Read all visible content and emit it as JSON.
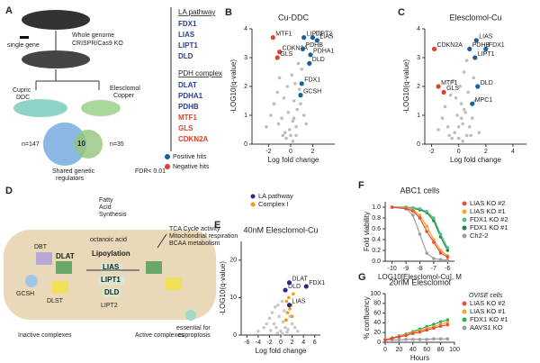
{
  "diagram_a": {
    "letter": "A",
    "single_gene": "single gene",
    "ko1": "Whole genome",
    "ko2": "CRISPR/Cas9 KO",
    "cupric1": "Cupric",
    "cupric2": "DDC",
    "eles1": "Elesclomol",
    "eles2": "Copper",
    "n1": "n=147",
    "overlap": "10",
    "n2": "n=35",
    "shared1": "Shared genetic",
    "shared2": "regulators",
    "fdr": "FDR< 0.01",
    "la_header": "LA pathway",
    "la_genes": [
      "FDX1",
      "LIAS",
      "LIPT1",
      "DLD"
    ],
    "pdh_header": "PDH complex",
    "pdh_genes": [
      "DLAT",
      "PDHA1",
      "PDHB"
    ],
    "neg_genes": [
      "MTF1",
      "GLS",
      "CDKN2A"
    ],
    "legend": [
      "Positive hits",
      "Negative hits"
    ]
  },
  "diagram_d": {
    "letter": "D",
    "dbt": "DBT",
    "dlat": "DLAT",
    "gcsh": "GCSH",
    "dlst": "DLST",
    "fas1": "Fatty",
    "fas2": "Acid",
    "fas3": "Synthesis",
    "octanoic": "octanoic acid",
    "lipoylation": "Lipoylation",
    "lias": "LIAS",
    "lipt1": "LIPT1",
    "dld": "DLD",
    "lipt2": "LIPT2",
    "out1": "TCA Cycle activity",
    "out2": "Mitochondrial respiration",
    "out3": "BCAA metabolism",
    "inactive": "Inactive complexes",
    "active": "Active complexes",
    "ess1": "essential for",
    "ess2": "cuproptosis"
  },
  "chart_data": [
    {
      "type": "scatter",
      "panel": "B",
      "title": "Cu-DDC",
      "x_label": "Log fold change",
      "y_label": "-LOG10(q-value)",
      "xlim": [
        -3.5,
        4
      ],
      "ylim": [
        0,
        4
      ],
      "xticks": [
        -2,
        0,
        2
      ],
      "yticks": [
        0,
        1,
        2,
        3,
        4
      ],
      "series": [
        {
          "color": "#bdbdbd",
          "x": [
            -2.2,
            -1.8,
            -1.5,
            -1.2,
            -1.0,
            -0.8,
            -0.6,
            -0.5,
            -0.3,
            -0.2,
            0,
            0.1,
            0.2,
            0.3,
            0.4,
            0.5,
            0.6,
            0.8,
            1.0,
            1.2,
            1.4,
            -0.4,
            -0.1,
            0.2,
            0.5,
            0.7,
            -0.7,
            -1.1,
            0.9,
            0.3
          ],
          "values": [
            0.6,
            1.0,
            1.4,
            1.8,
            2.3,
            0.9,
            1.6,
            0.4,
            2.0,
            1.1,
            0.3,
            2.4,
            0.8,
            1.5,
            2.1,
            0.6,
            1.2,
            1.9,
            2.6,
            1.0,
            0.7,
            0.2,
            0.5,
            0.1,
            0.3,
            2.8,
            0.3,
            0.7,
            1.4,
            0.9
          ]
        },
        {
          "color": "#e0402c",
          "x": [
            -1.6,
            -1.0,
            -1.2
          ],
          "values": [
            3.7,
            3.2,
            3.0
          ],
          "labels": [
            "MTF1",
            "CDKN2A",
            "GLS"
          ]
        },
        {
          "color": "#1a5f9a",
          "x": [
            1.2,
            2.0,
            2.4,
            1.1,
            1.8,
            1.7,
            1.0,
            0.9
          ],
          "values": [
            3.7,
            3.7,
            3.6,
            3.3,
            3.1,
            2.8,
            2.1,
            1.7
          ],
          "labels": [
            "LIPT1",
            "LIPT2",
            "LIAS",
            "PDHB",
            "PDHA1",
            "DLD",
            "FDX1",
            "GCSH"
          ]
        }
      ]
    },
    {
      "type": "scatter",
      "panel": "C",
      "title": "Elesclomol-Cu",
      "x_label": "Log fold change",
      "y_label": "-LOG10(q-value)",
      "xlim": [
        -2.5,
        5
      ],
      "ylim": [
        0,
        4
      ],
      "xticks": [
        -2,
        0,
        2,
        4
      ],
      "yticks": [
        0,
        1,
        2,
        3,
        4
      ],
      "series": [
        {
          "color": "#bdbdbd",
          "x": [
            -1.5,
            -1.2,
            -1.0,
            -0.8,
            -0.6,
            -0.4,
            -0.3,
            -0.1,
            0,
            0.1,
            0.2,
            0.3,
            0.4,
            0.5,
            0.6,
            0.7,
            0.8,
            1.0,
            1.2,
            1.5,
            -0.5,
            0.0,
            0.3,
            0.6,
            -0.2,
            0.9,
            1.1,
            -0.7,
            0.2,
            0.4
          ],
          "values": [
            0.5,
            0.9,
            1.3,
            0.6,
            1.7,
            2.2,
            0.4,
            1.0,
            0.2,
            2.0,
            1.4,
            0.7,
            2.5,
            1.1,
            0.3,
            1.8,
            0.6,
            0.9,
            1.5,
            0.4,
            0.2,
            0.6,
            0.1,
            2.9,
            1.6,
            0.3,
            2.3,
            0.3,
            0.9,
            1.2
          ]
        },
        {
          "color": "#e0402c",
          "x": [
            -1.8,
            -1.5,
            -1.1
          ],
          "values": [
            3.3,
            2.0,
            1.8
          ],
          "labels": [
            "CDKN2A",
            "MTF1",
            "GLS"
          ]
        },
        {
          "color": "#1a5f9a",
          "x": [
            1.3,
            0.8,
            2.0,
            1.2,
            1.4,
            1.0
          ],
          "values": [
            3.6,
            3.3,
            3.3,
            3.0,
            2.0,
            1.4
          ],
          "labels": [
            "LIAS",
            "PDHB",
            "FDX1",
            "LIPT1",
            "DLD",
            "MPC1"
          ]
        }
      ]
    },
    {
      "type": "scatter",
      "panel": "E",
      "title": "40nM Elesclomol-Cu",
      "x_label": "Log fold change",
      "y_label": "-LOG10(q-value)",
      "xlim": [
        -7,
        7
      ],
      "ylim": [
        0,
        25
      ],
      "xticks": [
        -6,
        -4,
        -2,
        0,
        2,
        4,
        6
      ],
      "yticks": [
        0,
        10,
        20
      ],
      "legend": "top",
      "series": [
        {
          "color": "#c8c8c8",
          "x": [
            -4,
            -3,
            -2.5,
            -2,
            -1.5,
            -1.2,
            -1,
            -0.8,
            -0.5,
            -0.3,
            0,
            0.2,
            0.4,
            0.6,
            0.8,
            1,
            1.3,
            1.6,
            2,
            2.5,
            3,
            -0.6,
            0.3,
            -1.8,
            1.1
          ],
          "values": [
            1,
            2,
            3,
            4.5,
            6,
            3,
            7.5,
            2,
            8,
            5,
            1,
            9,
            3.5,
            6.5,
            2,
            4,
            1.5,
            5,
            3,
            2,
            1,
            0.5,
            0.3,
            1.2,
            0.8
          ]
        },
        {
          "name": "Complex I",
          "color": "#f39c12",
          "x": [
            1.0,
            1.4,
            1.8,
            2.2,
            1.2,
            1.6,
            2.0,
            0.9
          ],
          "values": [
            9,
            10,
            8,
            11,
            6,
            7,
            5,
            4
          ]
        },
        {
          "name": "LA pathway",
          "color": "#2a2a8c",
          "x": [
            0.8,
            1.5,
            4.5,
            1.5
          ],
          "values": [
            12,
            14,
            13,
            8
          ],
          "labels": [
            "DLD",
            "DLAT",
            "FDX1",
            "LIAS"
          ]
        }
      ]
    },
    {
      "type": "line",
      "panel": "F",
      "title": "ABC1 cells",
      "x_label": "LOG10[Elesclomol-Cu], M",
      "y_label": "Fold viability",
      "xlim": [
        -10.5,
        -5.5
      ],
      "ylim": [
        0,
        1.1
      ],
      "xticks": [
        -10,
        -9,
        -8,
        -7,
        -6
      ],
      "yticks": [
        {
          "value": 0,
          "label": "0.0"
        },
        {
          "value": 0.2,
          "label": "0.2"
        },
        {
          "value": 0.4,
          "label": "0.4"
        },
        {
          "value": 0.6,
          "label": "0.6"
        },
        {
          "value": 0.8,
          "label": "0.8"
        },
        {
          "value": 1,
          "label": "1.0"
        }
      ],
      "legend": "right",
      "x": [
        -10,
        -9,
        -8.5,
        -8,
        -7.5,
        -7,
        -6.5,
        -6
      ],
      "series": [
        {
          "name": "Ch2-2",
          "color": "#9e9e9e",
          "values": [
            1.0,
            0.98,
            0.85,
            0.5,
            0.15,
            0.05,
            0.03,
            0.02
          ]
        },
        {
          "name": "FDX1 KO #1",
          "color": "#1e8449",
          "values": [
            1.0,
            1.0,
            0.98,
            0.95,
            0.9,
            0.75,
            0.45,
            0.2
          ]
        },
        {
          "name": "FDX1 KO #2",
          "color": "#52be80",
          "values": [
            1.0,
            1.0,
            0.99,
            0.97,
            0.92,
            0.8,
            0.5,
            0.25
          ]
        },
        {
          "name": "LIAS KO #1",
          "color": "#f5a623",
          "values": [
            1.0,
            0.98,
            0.95,
            0.85,
            0.65,
            0.4,
            0.2,
            0.1
          ]
        },
        {
          "name": "LIAS KO #2",
          "color": "#e74c3c",
          "values": [
            1.0,
            0.97,
            0.93,
            0.8,
            0.55,
            0.35,
            0.15,
            0.08
          ]
        }
      ]
    },
    {
      "type": "line",
      "panel": "G",
      "title": "20nM Elesclomol",
      "x_label": "Hours",
      "y_label": "% confluency",
      "xlim": [
        0,
        100
      ],
      "ylim": [
        0,
        100
      ],
      "xticks": [
        0,
        20,
        40,
        60,
        80,
        100
      ],
      "yticks": [
        0,
        20,
        40,
        60,
        80,
        100
      ],
      "legend": "right",
      "legend_title": "OVISE cells",
      "x": [
        0,
        10,
        20,
        30,
        40,
        50,
        60,
        70,
        80,
        90
      ],
      "series": [
        {
          "name": "AAVS1 KO",
          "color": "#9e9e9e",
          "values": [
            5,
            5,
            5,
            6,
            6,
            6,
            6,
            7,
            7,
            7
          ]
        },
        {
          "name": "FDX1 KO #1",
          "color": "#27ae60",
          "values": [
            5,
            9,
            13,
            17,
            22,
            27,
            32,
            37,
            42,
            46
          ]
        },
        {
          "name": "LIAS KO #1",
          "color": "#f5a623",
          "values": [
            5,
            8,
            12,
            16,
            20,
            24,
            28,
            32,
            37,
            41
          ]
        },
        {
          "name": "LIAS KO #2",
          "color": "#e74c3c",
          "values": [
            5,
            8,
            11,
            14,
            18,
            21,
            25,
            29,
            33,
            36
          ]
        }
      ]
    }
  ]
}
